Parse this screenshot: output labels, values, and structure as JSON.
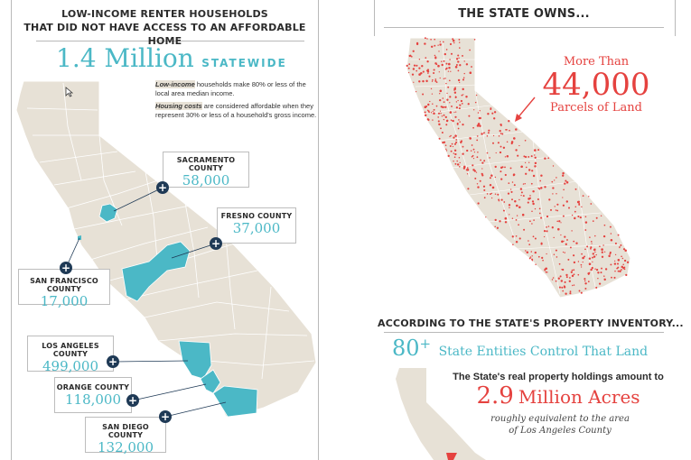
{
  "left": {
    "title_line1": "LOW-INCOME RENTER HOUSEHOLDS",
    "title_line2": "THAT DID NOT HAVE ACCESS TO AN AFFORDABLE HOME",
    "big_number": "1.4 Million",
    "big_suffix": "STATEWIDE",
    "note1_term": "Low-income",
    "note1_text": " households make 80% or less of the local area median income.",
    "note2_term": "Housing costs",
    "note2_text": " are considered affordable when they represent 30% or less of a household's gross income.",
    "counties": [
      {
        "name": "SACRAMENTO COUNTY",
        "value": "58,000"
      },
      {
        "name": "FRESNO COUNTY",
        "value": "37,000"
      },
      {
        "name": "SAN FRANCISCO COUNTY",
        "value": "17,000"
      },
      {
        "name": "LOS ANGELES COUNTY",
        "value": "499,000"
      },
      {
        "name": "ORANGE COUNTY",
        "value": "118,000"
      },
      {
        "name": "SAN DIEGO COUNTY",
        "value": "132,000"
      }
    ],
    "plus_glyph": "+"
  },
  "right": {
    "title": "THE STATE OWNS...",
    "more_than": "More Than",
    "parcels_number": "44,000",
    "parcels_label": "Parcels of Land",
    "inventory_title": "ACCORDING TO THE STATE'S PROPERTY INVENTORY...",
    "entities_number": "80",
    "entities_plus": "+",
    "entities_text": "State Entities Control That Land",
    "holdings_text": "The State's real property holdings amount to",
    "acres_number": "2.9",
    "acres_label": "Million Acres",
    "equiv_line1": "roughly equivalent to the area",
    "equiv_line2": "of Los Angeles County"
  },
  "colors": {
    "teal": "#4bb8c6",
    "red": "#e5423f",
    "map": "#e7e1d6",
    "navy": "#1f3a56"
  }
}
